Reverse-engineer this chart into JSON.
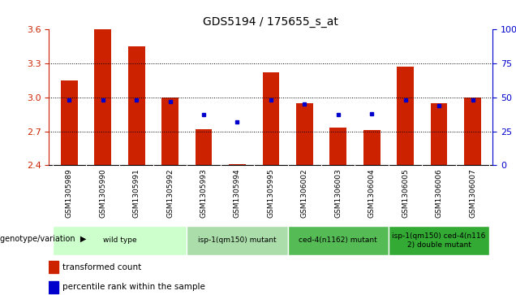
{
  "title": "GDS5194 / 175655_s_at",
  "samples": [
    "GSM1305989",
    "GSM1305990",
    "GSM1305991",
    "GSM1305992",
    "GSM1305993",
    "GSM1305994",
    "GSM1305995",
    "GSM1306002",
    "GSM1306003",
    "GSM1306004",
    "GSM1306005",
    "GSM1306006",
    "GSM1306007"
  ],
  "red_values": [
    3.15,
    3.6,
    3.45,
    3.0,
    2.72,
    2.41,
    3.22,
    2.95,
    2.73,
    2.71,
    3.27,
    2.95,
    3.0
  ],
  "blue_values": [
    48,
    48,
    48,
    47,
    37,
    32,
    48,
    45,
    37,
    38,
    48,
    44,
    48
  ],
  "y_min": 2.4,
  "y_max": 3.6,
  "y_ticks": [
    2.4,
    2.7,
    3.0,
    3.3,
    3.6
  ],
  "y_right_ticks": [
    0,
    25,
    50,
    75,
    100
  ],
  "groups": [
    {
      "label": "wild type",
      "start": 0,
      "end": 3,
      "color": "#ccffcc"
    },
    {
      "label": "isp-1(qm150) mutant",
      "start": 4,
      "end": 6,
      "color": "#aaddaa"
    },
    {
      "label": "ced-4(n1162) mutant",
      "start": 7,
      "end": 9,
      "color": "#55bb55"
    },
    {
      "label": "isp-1(qm150) ced-4(n116\n2) double mutant",
      "start": 10,
      "end": 12,
      "color": "#33aa33"
    }
  ],
  "bar_color": "#cc2200",
  "dot_color": "#0000cc",
  "bar_width": 0.5,
  "left_tick_color": "#cc2200",
  "right_tick_color": "#0000cc",
  "grid_lines": [
    2.7,
    3.0,
    3.3
  ],
  "legend_red": "transformed count",
  "legend_blue": "percentile rank within the sample",
  "genotype_label": "genotype/variation",
  "tick_bg_color": "#cccccc",
  "tick_sep_color": "#aaaaaa"
}
